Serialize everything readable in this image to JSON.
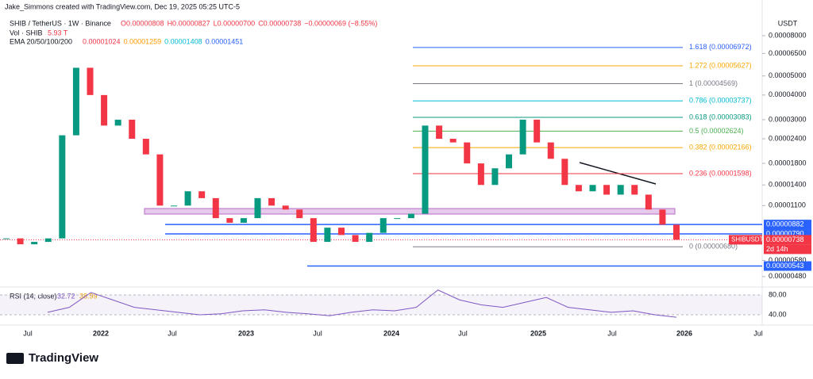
{
  "header": {
    "author_line": "Jake_Simmons created with TradingView.com, Dec 19, 2025 05:25 UTC-5",
    "symbol": "SHIB / TetherUS · 1W · Binance",
    "open": "O0.00000808",
    "high": "H0.00000827",
    "low": "L0.00000700",
    "close": "C0.00000738",
    "change": "−0.00000069 (−8.55%)",
    "vol_label": "Vol · SHIB",
    "vol_value": "5.93 T",
    "ema_label": "EMA 20/50/100/200",
    "ema_values": [
      {
        "label": "0.00001024",
        "color": "#f23645"
      },
      {
        "label": "0.00001259",
        "color": "#ff9800"
      },
      {
        "label": "0.00001408",
        "color": "#00bcd4"
      },
      {
        "label": "0.00001451",
        "color": "#2962ff"
      }
    ]
  },
  "price_axis": {
    "unit": "USDT",
    "log_scale": true,
    "ticks": [
      {
        "value": 8e-05,
        "label": "0.00008000"
      },
      {
        "value": 6.5e-05,
        "label": "0.00006500"
      },
      {
        "value": 5e-05,
        "label": "0.00005000"
      },
      {
        "value": 4e-05,
        "label": "0.00004000"
      },
      {
        "value": 3e-05,
        "label": "0.00003000"
      },
      {
        "value": 2.4e-05,
        "label": "0.00002400"
      },
      {
        "value": 1.8e-05,
        "label": "0.00001800"
      },
      {
        "value": 1.4e-05,
        "label": "0.00001400"
      },
      {
        "value": 1.1e-05,
        "label": "0.00001100"
      },
      {
        "value": 5.8e-06,
        "label": "0.00000580"
      },
      {
        "value": 4.8e-06,
        "label": "0.00000480"
      }
    ]
  },
  "fib_levels": [
    {
      "value": 6.972e-05,
      "label": "1.618 (0.00006972)",
      "color": "#2962ff"
    },
    {
      "value": 5.627e-05,
      "label": "1.272 (0.00005627)",
      "color": "#f7a600"
    },
    {
      "value": 4.569e-05,
      "label": "1 (0.00004569)",
      "color": "#787b86"
    },
    {
      "value": 3.737e-05,
      "label": "0.786 (0.00003737)",
      "color": "#00bcd4"
    },
    {
      "value": 3.083e-05,
      "label": "0.618 (0.00003083)",
      "color": "#089981"
    },
    {
      "value": 2.624e-05,
      "label": "0.5 (0.00002624)",
      "color": "#4caf50"
    },
    {
      "value": 2.166e-05,
      "label": "0.382 (0.00002166)",
      "color": "#f7a600"
    },
    {
      "value": 1.598e-05,
      "label": "0.236 (0.00001598)",
      "color": "#f23645"
    },
    {
      "value": 6.8e-06,
      "label": "0 (0.00000680)",
      "color": "#787b86"
    }
  ],
  "price_tags": [
    {
      "value": 8.82e-06,
      "label": "0.00000882",
      "color": "#2962ff"
    },
    {
      "value": 7.9e-06,
      "label": "0.00000790",
      "color": "#2962ff"
    },
    {
      "value": 7.38e-06,
      "label": "0.00000738",
      "color": "#f23645"
    },
    {
      "value": 5.43e-06,
      "label": "0.00000543",
      "color": "#2962ff"
    }
  ],
  "symbol_tag": "SHIBUSDT",
  "countdown": "2d 14h",
  "time_axis": [
    "Jul",
    "2022",
    "Jul",
    "2023",
    "Jul",
    "2024",
    "Jul",
    "2025",
    "Jul",
    "2026",
    "Jul"
  ],
  "price_series": [
    7.5e-06,
    7e-06,
    7.2e-06,
    7.5e-06,
    2.5e-05,
    5.5e-05,
    4e-05,
    2.8e-05,
    3e-05,
    2.4e-05,
    2e-05,
    1.1e-05,
    1.1e-05,
    1.3e-05,
    1.2e-05,
    9.5e-06,
    9e-06,
    9.5e-06,
    1.2e-05,
    1.1e-05,
    1.05e-05,
    9.5e-06,
    7.2e-06,
    8.5e-06,
    7.8e-06,
    7.2e-06,
    8e-06,
    9.5e-06,
    9.5e-06,
    1e-05,
    2.8e-05,
    2.4e-05,
    2.3e-05,
    1.8e-05,
    1.4e-05,
    1.7e-05,
    2e-05,
    3e-05,
    2.3e-05,
    1.9e-05,
    1.4e-05,
    1.3e-05,
    1.4e-05,
    1.25e-05,
    1.4e-05,
    1.25e-05,
    1.05e-05,
    8.8e-06,
    7.38e-06
  ],
  "rsi": {
    "title": "RSI (14, close)",
    "value": "32.72",
    "ma_value": "38.99",
    "ticks": [
      {
        "value": 80,
        "label": "80.00"
      },
      {
        "value": 40,
        "label": "40.00"
      }
    ],
    "series": [
      45,
      55,
      85,
      70,
      55,
      50,
      45,
      40,
      42,
      48,
      50,
      45,
      42,
      38,
      45,
      50,
      48,
      55,
      90,
      70,
      60,
      55,
      65,
      75,
      55,
      50,
      45,
      48,
      40,
      35
    ]
  },
  "footer": "TradingView"
}
